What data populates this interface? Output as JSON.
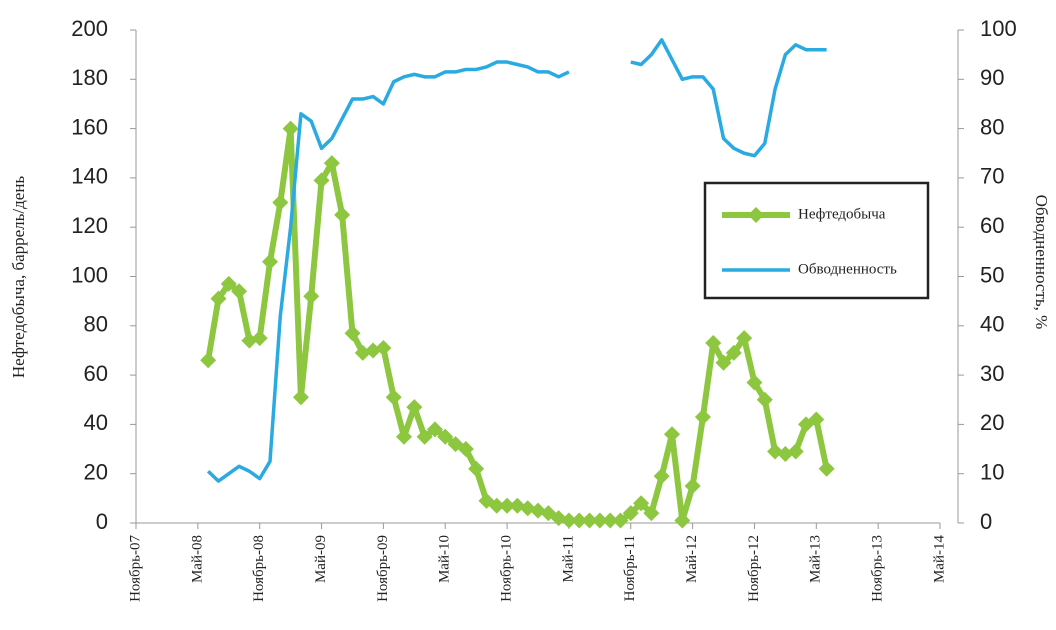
{
  "chart_data": {
    "type": "line",
    "x": [
      "2008-06",
      "2008-07",
      "2008-08",
      "2008-09",
      "2008-10",
      "2008-11",
      "2008-12",
      "2009-01",
      "2009-02",
      "2009-03",
      "2009-04",
      "2009-05",
      "2009-06",
      "2009-07",
      "2009-08",
      "2009-09",
      "2009-10",
      "2009-11",
      "2009-12",
      "2010-01",
      "2010-02",
      "2010-03",
      "2010-04",
      "2010-05",
      "2010-06",
      "2010-07",
      "2010-08",
      "2010-09",
      "2010-10",
      "2010-11",
      "2010-12",
      "2011-01",
      "2011-02",
      "2011-03",
      "2011-04",
      "2011-05",
      "2011-06",
      "2011-07",
      "2011-08",
      "2011-09",
      "2011-10",
      "2011-11",
      "2011-12",
      "2012-01",
      "2012-02",
      "2012-03",
      "2012-04",
      "2012-05",
      "2012-06",
      "2012-07",
      "2012-08",
      "2012-09",
      "2012-10",
      "2012-11",
      "2012-12",
      "2013-01",
      "2013-02",
      "2013-03",
      "2013-04",
      "2013-05",
      "2013-06"
    ],
    "series": [
      {
        "name": "Нефтедобыча",
        "color": "#8dc63f",
        "marker": "diamond",
        "values": [
          66,
          91,
          97,
          94,
          74,
          75,
          106,
          130,
          160,
          51,
          92,
          139,
          146,
          125,
          77,
          69,
          70,
          71,
          51,
          35,
          47,
          35,
          38,
          35,
          32,
          30,
          22,
          9,
          7,
          7,
          7,
          6,
          5,
          4,
          2,
          1,
          1,
          1,
          1,
          1,
          1,
          4,
          8,
          4,
          19,
          36,
          1,
          15,
          43,
          73,
          65,
          69,
          75,
          57,
          50,
          29,
          28,
          29,
          40,
          42,
          22
        ]
      },
      {
        "name": "Обводненность",
        "color": "#29abe2",
        "axis": "y2",
        "values": [
          10.5,
          8.5,
          10,
          11.5,
          10.5,
          9,
          12.5,
          42,
          60,
          83,
          81.5,
          76,
          78,
          82,
          86,
          86,
          86.5,
          85,
          89.5,
          90.5,
          91,
          90.5,
          90.5,
          91.5,
          91.5,
          92,
          92,
          92.5,
          93.5,
          93.5,
          93,
          92.5,
          91.5,
          91.5,
          90.5,
          91.5,
          null,
          null,
          null,
          null,
          null,
          93.5,
          93,
          95,
          98,
          94,
          90,
          90.5,
          90.5,
          88,
          78,
          76,
          75,
          74.5,
          77,
          88,
          95,
          97,
          96,
          96,
          96
        ]
      }
    ],
    "xlim": [
      "2007-11",
      "2014-05"
    ],
    "xticks": [
      {
        "value": "2007-11",
        "label": "Ноябрь-07"
      },
      {
        "value": "2008-05",
        "label": "Май-08"
      },
      {
        "value": "2008-11",
        "label": "Ноябрь-08"
      },
      {
        "value": "2009-05",
        "label": "Май-09"
      },
      {
        "value": "2009-11",
        "label": "Ноябрь-09"
      },
      {
        "value": "2010-05",
        "label": "Май-10"
      },
      {
        "value": "2010-11",
        "label": "Ноябрь-10"
      },
      {
        "value": "2011-05",
        "label": "Май-11"
      },
      {
        "value": "2011-11",
        "label": "Ноябрь-11"
      },
      {
        "value": "2012-05",
        "label": "Май-12"
      },
      {
        "value": "2012-11",
        "label": "Ноябрь-12"
      },
      {
        "value": "2013-05",
        "label": "Май-13"
      },
      {
        "value": "2013-11",
        "label": "Ноябрь-13"
      },
      {
        "value": "2014-05",
        "label": "Май-14"
      }
    ],
    "ylim": [
      0,
      200
    ],
    "yticks": [
      0,
      20,
      40,
      60,
      80,
      100,
      120,
      140,
      160,
      180,
      200
    ],
    "y2lim": [
      0,
      100
    ],
    "y2ticks": [
      0,
      10,
      20,
      30,
      40,
      50,
      60,
      70,
      80,
      90,
      100
    ],
    "ylabel": "Нефтедобыча, баррель/день",
    "y2label": "Обводненность, %",
    "grid": false,
    "legend": "right"
  }
}
